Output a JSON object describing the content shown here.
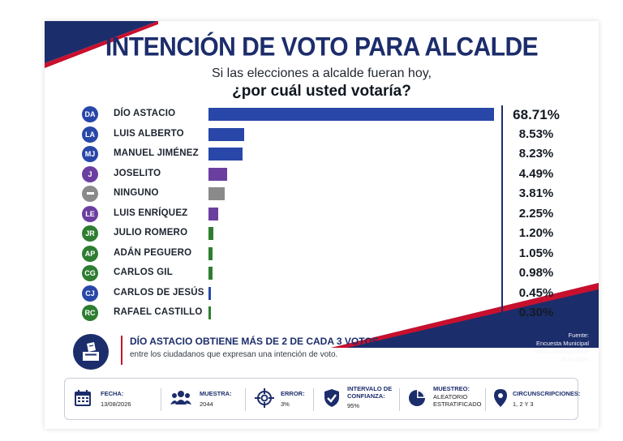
{
  "header": {
    "title": "INTENCIÓN DE VOTO PARA ALCALDE",
    "subtitle": "Si las elecciones a alcalde fueran hoy,",
    "question": "¿por cuál usted votaría?"
  },
  "colors": {
    "navy": "#1c2d6b",
    "red": "#c8102e",
    "blue_bar": "#2847a8",
    "purple_bar": "#6b3fa0",
    "gray_bar": "#8a8a8a",
    "green_bar": "#2e7d32"
  },
  "chart_data": {
    "type": "bar",
    "orientation": "horizontal",
    "title": "INTENCIÓN DE VOTO PARA ALCALDE",
    "categories": [
      "DÍO ASTACIO",
      "LUIS ALBERTO",
      "MANUEL JIMÉNEZ",
      "JOSELITO",
      "NINGUNO",
      "LUIS ENRÍQUEZ",
      "JULIO ROMERO",
      "ADÁN PEGUERO",
      "CARLOS GIL",
      "CARLOS DE JESÚS",
      "RAFAEL CASTILLO"
    ],
    "values": [
      68.71,
      8.53,
      8.23,
      4.49,
      3.81,
      2.25,
      1.2,
      1.05,
      0.98,
      0.45,
      0.3
    ],
    "labels": [
      "68.71%",
      "8.53%",
      "8.23%",
      "4.49%",
      "3.81%",
      "2.25%",
      "1.20%",
      "1.05%",
      "0.98%",
      "0.45%",
      "0.30%"
    ],
    "badges": [
      "DA",
      "LA",
      "MJ",
      "J",
      "",
      "LE",
      "JR",
      "AP",
      "CG",
      "CJ",
      "RC"
    ],
    "colors": [
      "#2847a8",
      "#2847a8",
      "#2847a8",
      "#6b3fa0",
      "#8a8a8a",
      "#6b3fa0",
      "#2e7d32",
      "#2e7d32",
      "#2e7d32",
      "#2847a8",
      "#2e7d32"
    ],
    "badge_colors": [
      "#2847a8",
      "#2847a8",
      "#2847a8",
      "#6b3fa0",
      "#8a8a8a",
      "#6b3fa0",
      "#2e7d32",
      "#2e7d32",
      "#2e7d32",
      "#2847a8",
      "#2e7d32"
    ],
    "xlim": [
      0,
      68.71
    ],
    "grid": false,
    "legend": "none"
  },
  "highlight": {
    "headline": "DÍO ASTACIO OBTIENE MÁS DE 2 DE CADA 3 VOTOS",
    "detail": "entre los ciudadanos que expresan una intención de voto.",
    "icon": "ballot-box-icon"
  },
  "source": {
    "label": "Fuente:",
    "line1": "Encuesta Municipal",
    "line2": "Santo Domingo Este",
    "line3": "Julio 2026"
  },
  "footer": {
    "fecha": {
      "label": "FECHA:",
      "value": "13/08/2026",
      "icon": "calendar-icon"
    },
    "muestra": {
      "label": "MUESTRA:",
      "value": "2044",
      "icon": "people-icon"
    },
    "error": {
      "label": "ERROR:",
      "value": "3%",
      "icon": "target-icon"
    },
    "confianza": {
      "label": "INTERVALO DE",
      "label2": "CONFIANZA:",
      "value": "95%",
      "icon": "shield-check-icon"
    },
    "muestreo": {
      "label": "MUESTREO:",
      "value": "ALEATORIO",
      "value2": "ESTRATIFICADO",
      "icon": "pie-chart-icon"
    },
    "circunscripciones": {
      "label": "CIRCUNSCRIPCIONES:",
      "value": "1, 2 Y 3",
      "icon": "map-pin-icon"
    }
  }
}
